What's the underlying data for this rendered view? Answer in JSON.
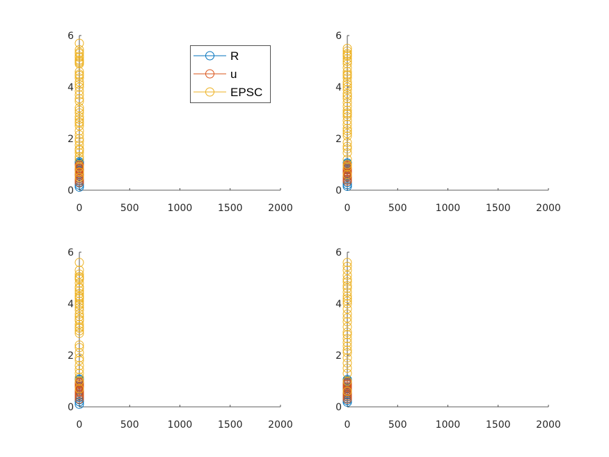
{
  "figure": {
    "background": "#ffffff"
  },
  "series_styles": [
    {
      "key": "R",
      "color": "#0072BD"
    },
    {
      "key": "u",
      "color": "#D95319"
    },
    {
      "key": "EPSC",
      "color": "#EDB120"
    }
  ],
  "legend": {
    "entries": [
      "R",
      "u",
      "EPSC"
    ],
    "placement": "top-right of first subplot"
  },
  "chart_data": [
    {
      "type": "scatter",
      "marker": "open-circle",
      "xlim": [
        0,
        2000
      ],
      "ylim": [
        0,
        6
      ],
      "xticks": [
        "0",
        "500",
        "1000",
        "1500",
        "2000"
      ],
      "yticks": [
        "0",
        "2",
        "4",
        "6"
      ],
      "grid": false,
      "series": [
        {
          "name": "R",
          "x": [
            0,
            0,
            0,
            0,
            0,
            0,
            0,
            0,
            0,
            0,
            0,
            0,
            0,
            0,
            0,
            0
          ],
          "y": [
            0.12,
            0.2,
            0.28,
            0.35,
            0.45,
            0.55,
            0.62,
            0.7,
            0.78,
            0.85,
            0.9,
            0.95,
            1.0,
            1.03,
            1.06,
            1.1
          ]
        },
        {
          "name": "u",
          "x": [
            0,
            0,
            0,
            0,
            0,
            0,
            0,
            0,
            0,
            0,
            0,
            0,
            0,
            0
          ],
          "y": [
            0.3,
            0.38,
            0.45,
            0.5,
            0.55,
            0.62,
            0.68,
            0.72,
            0.78,
            0.82,
            0.86,
            0.9,
            0.94,
            0.98
          ]
        },
        {
          "name": "EPSC",
          "x": [
            0,
            0,
            0,
            0,
            0,
            0,
            0,
            0,
            0,
            0,
            0,
            0,
            0,
            0,
            0,
            0,
            0,
            0,
            0,
            0,
            0,
            0,
            0,
            0,
            0,
            0,
            0,
            0,
            0,
            0,
            0,
            0,
            0,
            0,
            0,
            0,
            0,
            0,
            0,
            0,
            0,
            0
          ],
          "y": [
            0.5,
            0.9,
            1.3,
            1.45,
            1.6,
            1.75,
            2.0,
            2.15,
            2.3,
            2.5,
            2.65,
            2.75,
            2.85,
            3.0,
            3.2,
            3.45,
            3.7,
            3.85,
            4.0,
            4.1,
            4.2,
            4.35,
            4.5,
            4.6,
            4.9,
            5.0,
            5.05,
            5.15,
            5.3,
            5.45,
            5.7,
            1.2,
            1.55,
            2.6,
            3.1,
            3.55,
            4.45,
            4.95,
            5.2,
            5.35,
            0.7,
            1.9
          ]
        }
      ]
    },
    {
      "type": "scatter",
      "marker": "open-circle",
      "xlim": [
        0,
        2000
      ],
      "ylim": [
        0,
        6
      ],
      "xticks": [
        "0",
        "500",
        "1000",
        "1500",
        "2000"
      ],
      "yticks": [
        "0",
        "2",
        "4",
        "6"
      ],
      "grid": false,
      "series": [
        {
          "name": "R",
          "x": [
            0,
            0,
            0,
            0,
            0,
            0,
            0,
            0,
            0,
            0,
            0,
            0,
            0,
            0
          ],
          "y": [
            0.15,
            0.22,
            0.3,
            0.4,
            0.5,
            0.58,
            0.65,
            0.72,
            0.8,
            0.86,
            0.92,
            0.97,
            1.02,
            1.06
          ]
        },
        {
          "name": "u",
          "x": [
            0,
            0,
            0,
            0,
            0,
            0,
            0,
            0,
            0,
            0,
            0,
            0
          ],
          "y": [
            0.35,
            0.42,
            0.5,
            0.55,
            0.62,
            0.68,
            0.72,
            0.78,
            0.83,
            0.88,
            0.93,
            0.97
          ]
        },
        {
          "name": "EPSC",
          "x": [
            0,
            0,
            0,
            0,
            0,
            0,
            0,
            0,
            0,
            0,
            0,
            0,
            0,
            0,
            0,
            0,
            0,
            0,
            0,
            0,
            0,
            0,
            0,
            0,
            0,
            0,
            0,
            0,
            0,
            0,
            0,
            0,
            0,
            0,
            0,
            0,
            0,
            0,
            0,
            0
          ],
          "y": [
            0.6,
            0.9,
            1.2,
            1.45,
            1.7,
            1.85,
            2.1,
            2.3,
            2.4,
            2.55,
            2.7,
            2.85,
            3.0,
            3.1,
            3.25,
            3.4,
            3.55,
            3.75,
            3.9,
            4.0,
            4.1,
            4.2,
            4.35,
            4.5,
            4.6,
            4.75,
            4.9,
            5.0,
            5.1,
            5.2,
            5.3,
            5.4,
            5.5,
            1.0,
            1.6,
            2.2,
            2.95,
            3.65,
            4.45,
            5.25
          ]
        }
      ]
    },
    {
      "type": "scatter",
      "marker": "open-circle",
      "xlim": [
        0,
        2000
      ],
      "ylim": [
        0,
        6
      ],
      "xticks": [
        "0",
        "500",
        "1000",
        "1500",
        "2000"
      ],
      "yticks": [
        "0",
        "2",
        "4",
        "6"
      ],
      "grid": false,
      "series": [
        {
          "name": "R",
          "x": [
            0,
            0,
            0,
            0,
            0,
            0,
            0,
            0,
            0,
            0,
            0,
            0,
            0,
            0,
            0
          ],
          "y": [
            0.1,
            0.2,
            0.28,
            0.36,
            0.45,
            0.55,
            0.62,
            0.7,
            0.78,
            0.84,
            0.9,
            0.95,
            1.0,
            1.04,
            1.08
          ]
        },
        {
          "name": "u",
          "x": [
            0,
            0,
            0,
            0,
            0,
            0,
            0,
            0,
            0,
            0,
            0,
            0,
            0
          ],
          "y": [
            0.3,
            0.4,
            0.48,
            0.55,
            0.6,
            0.66,
            0.72,
            0.76,
            0.8,
            0.85,
            0.9,
            0.94,
            0.98
          ]
        },
        {
          "name": "EPSC",
          "x": [
            0,
            0,
            0,
            0,
            0,
            0,
            0,
            0,
            0,
            0,
            0,
            0,
            0,
            0,
            0,
            0,
            0,
            0,
            0,
            0,
            0,
            0,
            0,
            0,
            0,
            0,
            0,
            0,
            0,
            0,
            0,
            0,
            0,
            0,
            0,
            0,
            0,
            0,
            0
          ],
          "y": [
            0.7,
            1.0,
            1.3,
            1.45,
            1.6,
            1.8,
            2.1,
            2.3,
            2.4,
            2.85,
            2.95,
            3.05,
            3.2,
            3.35,
            3.5,
            3.6,
            3.75,
            3.85,
            4.0,
            4.1,
            4.2,
            4.3,
            4.4,
            4.5,
            4.6,
            4.8,
            4.95,
            5.05,
            5.15,
            5.3,
            5.6,
            1.15,
            1.9,
            3.1,
            3.4,
            3.95,
            4.25,
            4.65,
            5.0
          ]
        }
      ]
    },
    {
      "type": "scatter",
      "marker": "open-circle",
      "xlim": [
        0,
        2000
      ],
      "ylim": [
        0,
        6
      ],
      "xticks": [
        "0",
        "500",
        "1000",
        "1500",
        "2000"
      ],
      "yticks": [
        "0",
        "2",
        "4",
        "6"
      ],
      "grid": false,
      "series": [
        {
          "name": "R",
          "x": [
            0,
            0,
            0,
            0,
            0,
            0,
            0,
            0,
            0,
            0,
            0,
            0,
            0,
            0
          ],
          "y": [
            0.18,
            0.25,
            0.32,
            0.4,
            0.48,
            0.56,
            0.64,
            0.72,
            0.8,
            0.86,
            0.92,
            0.97,
            1.02,
            1.06
          ]
        },
        {
          "name": "u",
          "x": [
            0,
            0,
            0,
            0,
            0,
            0,
            0,
            0,
            0,
            0,
            0,
            0
          ],
          "y": [
            0.3,
            0.38,
            0.45,
            0.52,
            0.58,
            0.64,
            0.7,
            0.75,
            0.8,
            0.86,
            0.9,
            0.95
          ]
        },
        {
          "name": "EPSC",
          "x": [
            0,
            0,
            0,
            0,
            0,
            0,
            0,
            0,
            0,
            0,
            0,
            0,
            0,
            0,
            0,
            0,
            0,
            0,
            0,
            0,
            0,
            0,
            0,
            0,
            0,
            0,
            0,
            0,
            0,
            0,
            0
          ],
          "y": [
            0.6,
            1.0,
            1.3,
            1.5,
            1.7,
            1.9,
            2.1,
            2.35,
            2.5,
            2.65,
            2.8,
            3.1,
            3.3,
            3.45,
            3.6,
            3.8,
            4.1,
            4.2,
            4.3,
            4.45,
            4.6,
            4.7,
            4.85,
            4.95,
            5.1,
            5.3,
            5.45,
            5.6,
            2.2,
            2.9,
            4.0
          ]
        }
      ]
    }
  ]
}
